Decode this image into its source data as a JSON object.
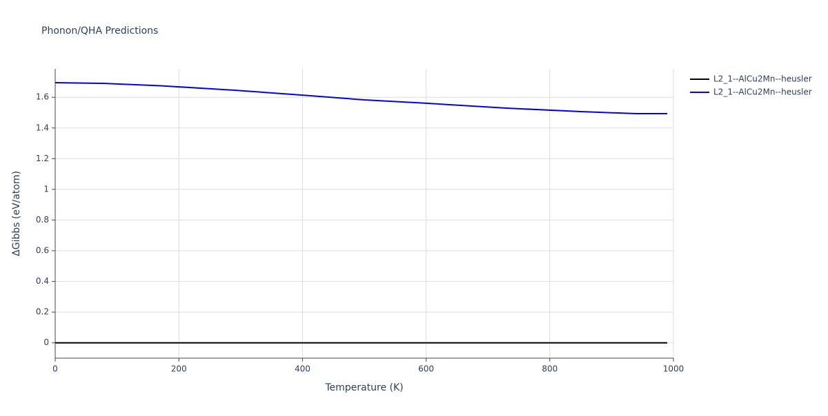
{
  "chart_data": {
    "type": "line",
    "title": "Phonon/QHA Predictions",
    "x_label": "Temperature (K)",
    "y_label": "ΔGibbs (eV/atom)",
    "x": [
      0,
      80,
      170,
      290,
      400,
      500,
      600,
      730,
      850,
      940,
      990
    ],
    "series": [
      {
        "name": "L2_1--AlCu2Mn--heusler",
        "color": "#000000",
        "values": [
          0,
          0,
          0,
          0,
          0,
          0,
          0,
          0,
          0,
          0,
          0
        ]
      },
      {
        "name": "L2_1--AlCu2Mn--heusler",
        "color": "#0000ee",
        "values": [
          1.695,
          1.69,
          1.675,
          1.646,
          1.614,
          1.583,
          1.561,
          1.529,
          1.507,
          1.493,
          1.493
        ]
      }
    ],
    "xlim": [
      0,
      1000
    ],
    "xticks": [
      0,
      200,
      400,
      600,
      800,
      1000
    ],
    "ylim": [
      -0.1,
      1.785
    ],
    "yticks": [
      0,
      0.2,
      0.4,
      0.6,
      0.8,
      1,
      1.2,
      1.4,
      1.6
    ],
    "grid": true,
    "legend": "right"
  }
}
